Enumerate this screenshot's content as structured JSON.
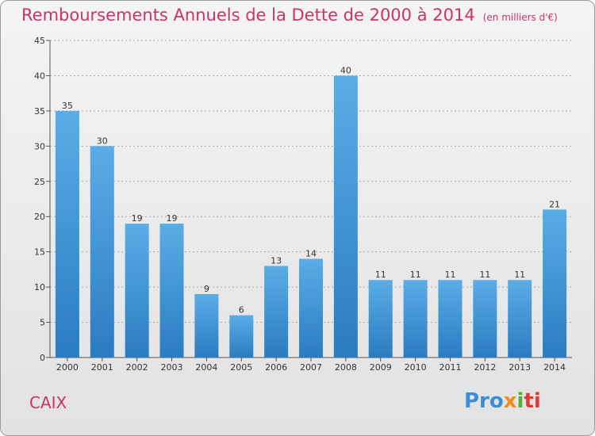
{
  "header": {
    "title": "Remboursements Annuels de la Dette de 2000 à 2014",
    "subtitle": "(en milliers d'€)"
  },
  "footer": {
    "place": "CAIX",
    "logo": [
      "Pro",
      "x",
      "i",
      "ti"
    ]
  },
  "colors": {
    "title": "#c8336a",
    "bar_top": "#5aade6",
    "bar_bottom": "#2a7cc0",
    "grid": "#a9a9a9"
  },
  "chart_data": {
    "type": "bar",
    "categories": [
      "2000",
      "2001",
      "2002",
      "2003",
      "2004",
      "2005",
      "2006",
      "2007",
      "2008",
      "2009",
      "2010",
      "2011",
      "2012",
      "2013",
      "2014"
    ],
    "values": [
      35,
      30,
      19,
      19,
      9,
      6,
      13,
      14,
      40,
      11,
      11,
      11,
      11,
      11,
      21
    ],
    "title": "Remboursements Annuels de la Dette de 2000 à 2014",
    "ylim": [
      0,
      45
    ],
    "yticks": [
      0,
      5,
      10,
      15,
      20,
      25,
      30,
      35,
      40,
      45
    ],
    "grid": true,
    "data_labels": true
  }
}
